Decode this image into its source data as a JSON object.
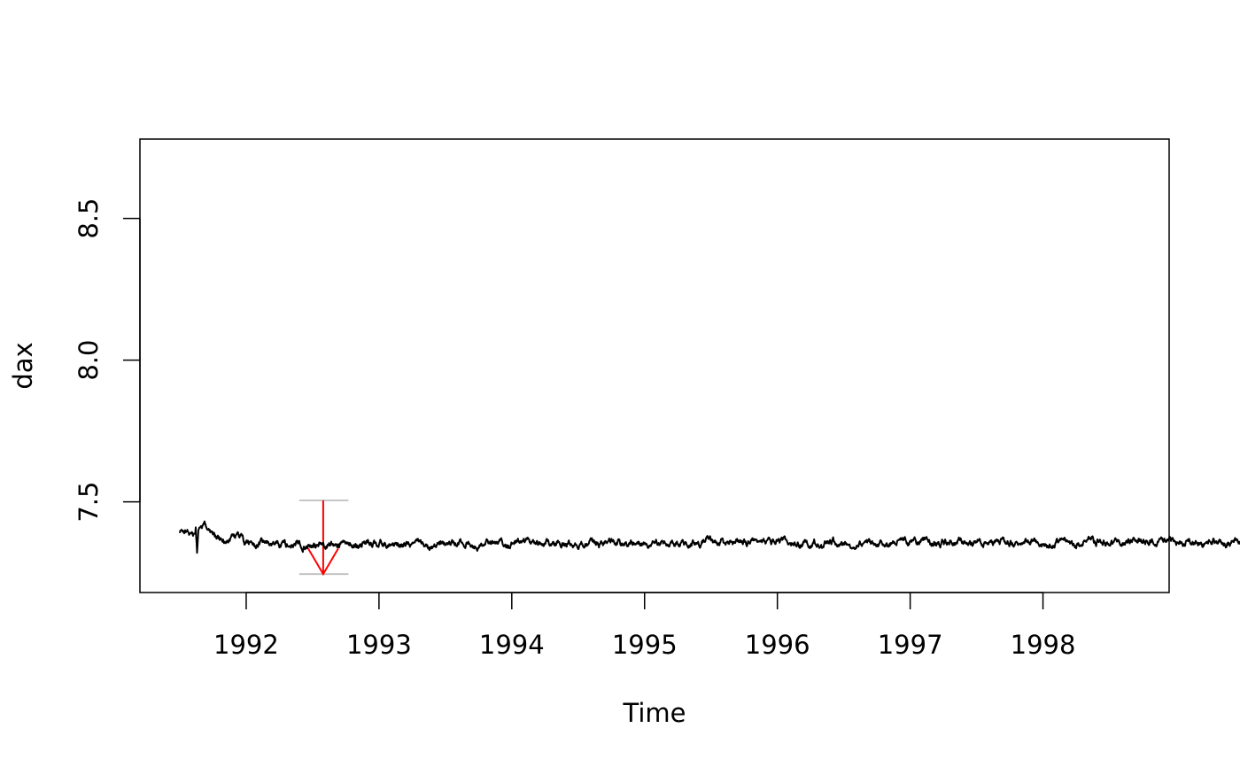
{
  "chart_data": {
    "type": "line",
    "title": "",
    "xlabel": "Time",
    "ylabel": "dax",
    "xlim": [
      1991.2,
      1998.95
    ],
    "ylim": [
      7.18,
      8.78
    ],
    "x_ticks": [
      {
        "value": 1992,
        "label": "1992"
      },
      {
        "value": 1993,
        "label": "1993"
      },
      {
        "value": 1994,
        "label": "1994"
      },
      {
        "value": 1995,
        "label": "1995"
      },
      {
        "value": 1996,
        "label": "1996"
      },
      {
        "value": 1997,
        "label": "1997"
      },
      {
        "value": 1998,
        "label": "1998"
      }
    ],
    "y_ticks": [
      {
        "value": 7.5,
        "label": "7.5"
      },
      {
        "value": 8.0,
        "label": "8.0"
      },
      {
        "value": 8.5,
        "label": "8.5"
      }
    ],
    "grid": false,
    "series": [
      {
        "color": "#000000",
        "points": [
          [
            1991.5,
            7.39
          ],
          [
            1991.54,
            7.4
          ],
          [
            1991.58,
            7.39
          ],
          [
            1991.6,
            7.38
          ],
          [
            1991.62,
            7.41
          ],
          [
            1991.63,
            7.32
          ],
          [
            1991.64,
            7.4
          ],
          [
            1991.7,
            7.41
          ],
          [
            1991.76,
            7.39
          ],
          [
            1991.82,
            7.36
          ],
          [
            1991.88,
            7.37
          ],
          [
            1991.94,
            7.39
          ],
          [
            1991.99,
            7.35
          ],
          [
            2000.0,
            7.36
          ]
        ]
      }
    ],
    "annotations": [
      {
        "type": "max-drawdown",
        "color": "#ff0000",
        "guide_color": "#bebebe",
        "x_start": 1992.4,
        "x_peak": 1992.58,
        "x_trough": 1992.77,
        "y_peak": 7.505,
        "y_trough": 7.245
      }
    ]
  }
}
